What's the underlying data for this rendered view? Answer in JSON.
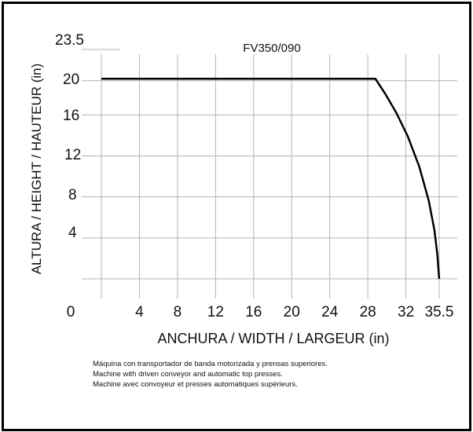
{
  "chart_data": {
    "type": "area",
    "title": "FV350/090",
    "xlabel": "ANCHURA / WIDTH / LARGEUR (in)",
    "ylabel": "ALTURA / HEIGHT / HAUTEUR (in)",
    "x_ticks": [
      "0",
      "4",
      "8",
      "12",
      "16",
      "20",
      "24",
      "28",
      "32",
      "35.5"
    ],
    "y_ticks": [
      "4",
      "8",
      "12",
      "16",
      "20",
      "23.5"
    ],
    "xlim": [
      0,
      35.5
    ],
    "ylim": [
      0,
      23.5
    ],
    "grid": true,
    "series": [
      {
        "x": [
          0,
          28.8,
          29.8,
          31.0,
          32.2,
          33.4,
          34.4,
          35.0,
          35.3,
          35.5
        ],
        "y": [
          20.5,
          20.5,
          19.0,
          17.0,
          14.6,
          11.5,
          8.0,
          5.0,
          2.5,
          0
        ]
      }
    ]
  },
  "notes": [
    "Máquina con transportador de banda motorizada y prensas superiores.",
    "Machine with driven conveyor and automatic top presses.",
    "Machine avec convoyeur et presses automatiques supérieurs."
  ]
}
